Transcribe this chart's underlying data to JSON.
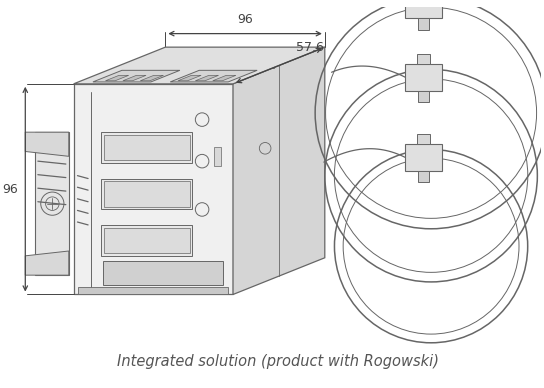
{
  "title": "Integrated solution (product with Rogowski)",
  "title_fontsize": 10.5,
  "title_color": "#555555",
  "background_color": "#ffffff",
  "line_color": "#666666",
  "dim_color": "#444444",
  "dim_96_top": "96",
  "dim_576": "57.6",
  "dim_96_left": "96"
}
